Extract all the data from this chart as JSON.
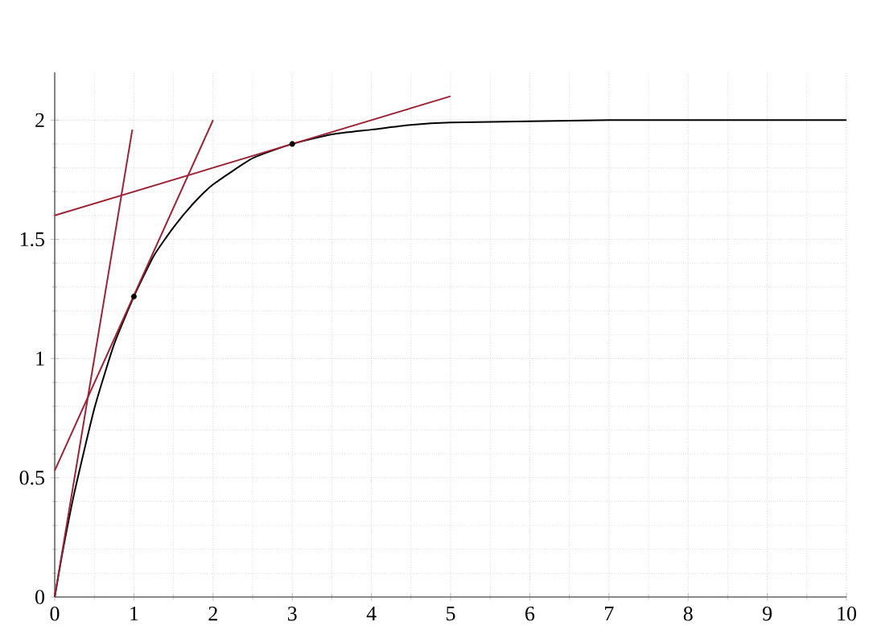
{
  "chart_data": {
    "type": "line",
    "xlim": [
      0,
      10
    ],
    "ylim": [
      0,
      2.2
    ],
    "xticks": [
      0,
      1,
      2,
      3,
      4,
      5,
      6,
      7,
      8,
      9,
      10
    ],
    "yticks": [
      0,
      0.5,
      1,
      1.5,
      2
    ],
    "grid": true,
    "series": [
      {
        "color": "#000000",
        "marker": "none",
        "x": [
          0,
          0.1,
          0.25,
          0.5,
          0.75,
          1,
          1.25,
          1.5,
          1.75,
          2,
          2.5,
          3,
          3.5,
          4,
          4.5,
          5,
          6,
          7,
          8,
          9,
          10
        ],
        "values": [
          0,
          0.19,
          0.44,
          0.79,
          1.06,
          1.26,
          1.43,
          1.55,
          1.65,
          1.73,
          1.84,
          1.9,
          1.94,
          1.96,
          1.98,
          1.99,
          1.995,
          2,
          2,
          2,
          2
        ]
      },
      {
        "color": "#9b2335",
        "marker": "none",
        "x": [
          0,
          0.98
        ],
        "values": [
          0,
          1.96
        ]
      },
      {
        "color": "#9b2335",
        "marker": "none",
        "x": [
          0,
          2
        ],
        "values": [
          0.53,
          2.0
        ]
      },
      {
        "color": "#9b2335",
        "marker": "none",
        "x": [
          0,
          5
        ],
        "values": [
          1.6,
          2.1
        ]
      },
      {
        "type": "scatter",
        "color": "#000000",
        "marker": "circle",
        "x": [
          1,
          3
        ],
        "values": [
          1.26,
          1.9
        ]
      }
    ]
  }
}
